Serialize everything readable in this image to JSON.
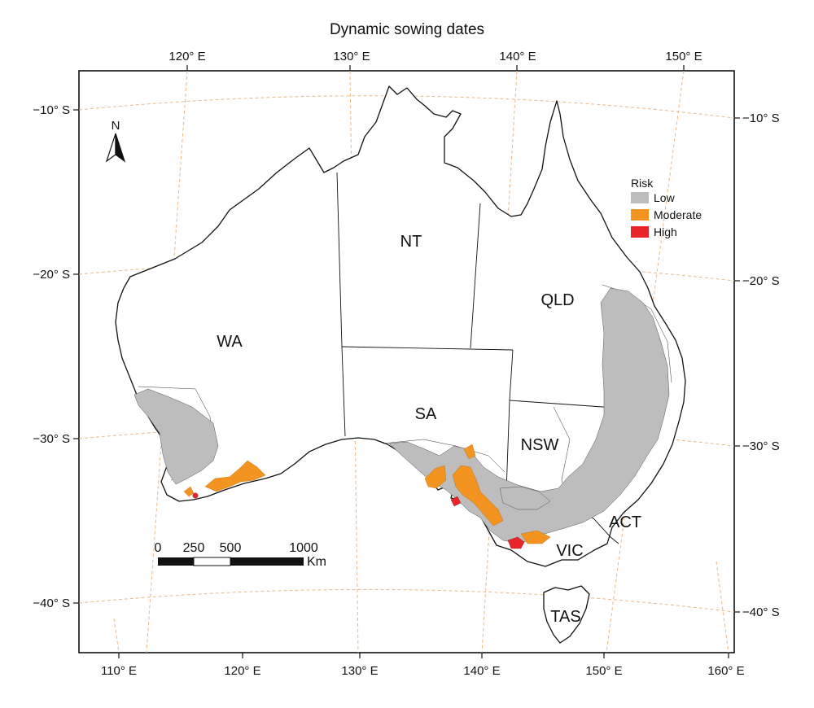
{
  "title": "Dynamic sowing dates",
  "top_longitude_labels": [
    "120° E",
    "130° E",
    "140° E",
    "150° E"
  ],
  "bottom_longitude_labels": [
    "110° E",
    "120° E",
    "130° E",
    "140° E",
    "150° E",
    "160° E"
  ],
  "left_latitude_labels": [
    "−10° S",
    "−20° S",
    "−30° S",
    "−40° S"
  ],
  "right_latitude_labels": [
    "−10° S",
    "−20° S",
    "−30° S",
    "−40° S"
  ],
  "north_arrow_label": "N",
  "states": [
    {
      "key": "wa",
      "label": "WA"
    },
    {
      "key": "nt",
      "label": "NT"
    },
    {
      "key": "qld",
      "label": "QLD"
    },
    {
      "key": "sa",
      "label": "SA"
    },
    {
      "key": "nsw",
      "label": "NSW"
    },
    {
      "key": "act",
      "label": "ACT"
    },
    {
      "key": "vic",
      "label": "VIC"
    },
    {
      "key": "tas",
      "label": "TAS"
    }
  ],
  "legend": {
    "title": "Risk",
    "items": [
      {
        "label": "Low",
        "color": "#bdbdbd"
      },
      {
        "label": "Moderate",
        "color": "#f39320"
      },
      {
        "label": "High",
        "color": "#e8252b"
      }
    ]
  },
  "scale_bar": {
    "labels": [
      "0",
      "250",
      "500",
      "1000"
    ],
    "unit": "Km"
  },
  "colors": {
    "graticule": "#e9b98a",
    "outline": "#111111",
    "low": "#bdbdbd",
    "moderate": "#f39320",
    "high": "#e8252b"
  }
}
